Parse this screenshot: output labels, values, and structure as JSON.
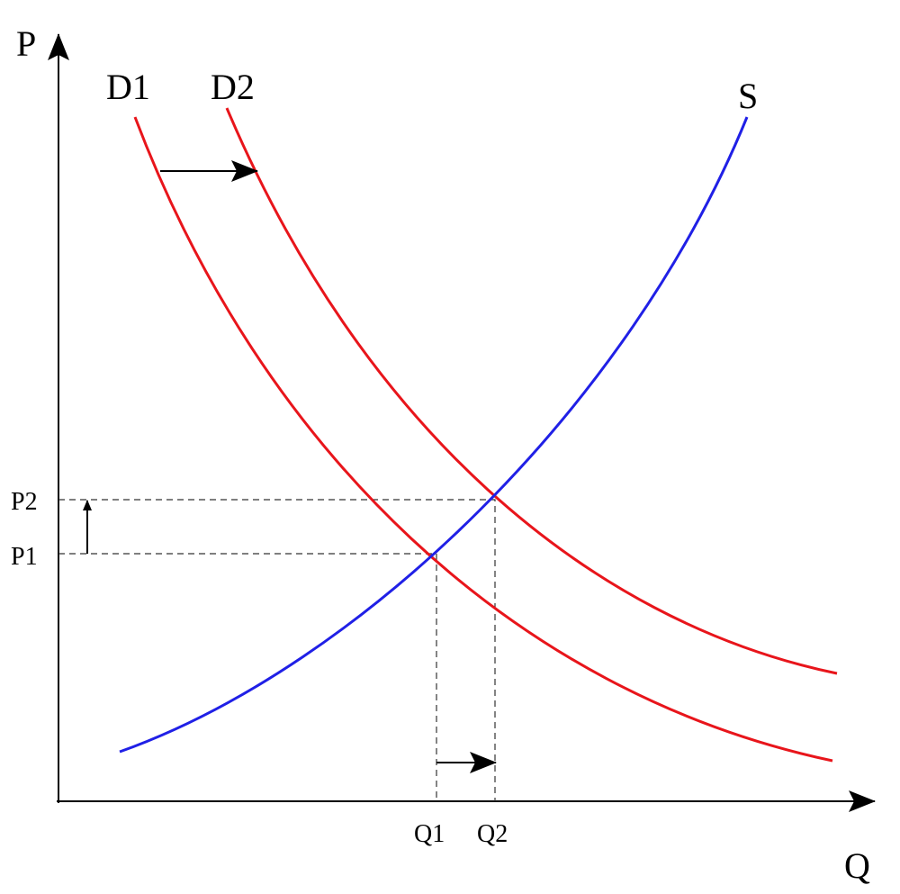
{
  "axes": {
    "y": "P",
    "x": "Q"
  },
  "curves": [
    {
      "label": "D1"
    },
    {
      "label": "D2"
    },
    {
      "label": "S"
    }
  ],
  "price_labels": [
    "P1",
    "P2"
  ],
  "quantity_labels": [
    "Q1",
    "Q2"
  ]
}
